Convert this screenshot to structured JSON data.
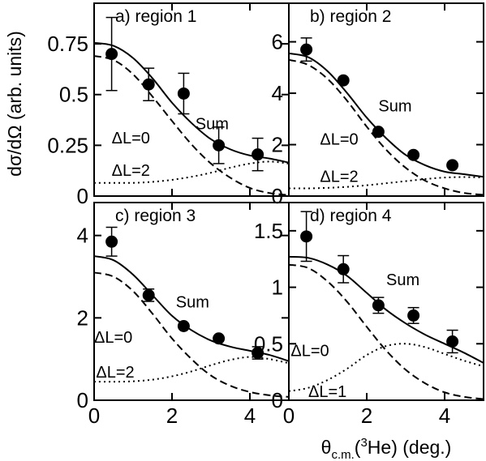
{
  "figure": {
    "ylabel": "dσ/dΩ (arb. units)",
    "xlabel_main": "θ",
    "xlabel_sub": "c.m.",
    "xlabel_paren": "(",
    "xlabel_sup": "3",
    "xlabel_rest": "He) (deg.)"
  },
  "chart_data": [
    {
      "type": "line",
      "title": "a) region 1",
      "xlim": [
        0,
        5
      ],
      "ylim": [
        0,
        0.95
      ],
      "yticks": [
        0,
        0.25,
        0.5,
        0.75
      ],
      "ytick_labels": [
        "0",
        "0.25",
        "0.5",
        "0.75"
      ],
      "xticks": [
        0,
        2,
        4
      ],
      "xtick_labels": [
        "",
        "",
        ""
      ],
      "points": {
        "x": [
          0.45,
          1.4,
          2.3,
          3.2,
          4.2
        ],
        "y": [
          0.7,
          0.55,
          0.505,
          0.25,
          0.205
        ],
        "yerr": [
          0.18,
          0.08,
          0.1,
          0.09,
          0.08
        ]
      },
      "series": [
        {
          "name": "Sum",
          "style": "solid",
          "x": [
            0,
            0.5,
            1.0,
            1.5,
            2.0,
            2.5,
            3.0,
            3.5,
            4.0,
            4.5,
            5.0
          ],
          "y": [
            0.755,
            0.74,
            0.68,
            0.58,
            0.46,
            0.36,
            0.28,
            0.23,
            0.2,
            0.185,
            0.165
          ]
        },
        {
          "name": "ΔL=0",
          "style": "dashed",
          "x": [
            0,
            0.5,
            1.0,
            1.5,
            2.0,
            2.5,
            3.0,
            3.5,
            4.0,
            4.5,
            5.0
          ],
          "y": [
            0.69,
            0.67,
            0.6,
            0.49,
            0.37,
            0.255,
            0.16,
            0.09,
            0.04,
            0.015,
            0.005
          ]
        },
        {
          "name": "ΔL=2",
          "style": "dotted",
          "x": [
            0,
            0.5,
            1.0,
            1.5,
            2.0,
            2.5,
            3.0,
            3.5,
            4.0,
            4.5,
            5.0
          ],
          "y": [
            0.065,
            0.065,
            0.065,
            0.07,
            0.08,
            0.095,
            0.115,
            0.14,
            0.16,
            0.17,
            0.16
          ]
        }
      ],
      "annotations": [
        {
          "text": "Sum",
          "x": 2.6,
          "y": 0.33
        },
        {
          "text": "ΔL=0",
          "x": 0.45,
          "y": 0.26
        },
        {
          "text": "ΔL=2",
          "x": 0.45,
          "y": 0.1
        }
      ]
    },
    {
      "type": "line",
      "title": "b) region 2",
      "xlim": [
        0,
        5
      ],
      "ylim": [
        0,
        7.5
      ],
      "yticks": [
        0,
        2,
        4,
        6
      ],
      "ytick_labels": [
        "0",
        "2",
        "4",
        "6"
      ],
      "xticks": [
        0,
        2,
        4
      ],
      "xtick_labels": [
        "",
        "",
        ""
      ],
      "points": {
        "x": [
          0.45,
          1.4,
          2.3,
          3.2,
          4.2
        ],
        "y": [
          5.7,
          4.5,
          2.5,
          1.6,
          1.2
        ],
        "yerr": [
          0.45,
          0.0,
          0.0,
          0.0,
          0.0
        ]
      },
      "series": [
        {
          "name": "Sum",
          "style": "solid",
          "x": [
            0,
            0.5,
            1.0,
            1.5,
            2.0,
            2.5,
            3.0,
            3.5,
            4.0,
            4.5,
            5.0
          ],
          "y": [
            5.55,
            5.4,
            4.85,
            4.0,
            3.05,
            2.25,
            1.6,
            1.2,
            0.95,
            0.85,
            0.75
          ]
        },
        {
          "name": "ΔL=0",
          "style": "dashed",
          "x": [
            0,
            0.5,
            1.0,
            1.5,
            2.0,
            2.5,
            3.0,
            3.5,
            4.0,
            4.5,
            5.0
          ],
          "y": [
            5.3,
            5.1,
            4.55,
            3.7,
            2.7,
            1.8,
            1.1,
            0.6,
            0.3,
            0.12,
            0.05
          ]
        },
        {
          "name": "ΔL=2",
          "style": "dotted",
          "x": [
            0,
            0.5,
            1.0,
            1.5,
            2.0,
            2.5,
            3.0,
            3.5,
            4.0,
            4.5,
            5.0
          ],
          "y": [
            0.3,
            0.3,
            0.32,
            0.36,
            0.42,
            0.5,
            0.58,
            0.66,
            0.72,
            0.74,
            0.72
          ]
        }
      ],
      "annotations": [
        {
          "text": "Sum",
          "x": 2.3,
          "y": 3.3
        },
        {
          "text": "ΔL=0",
          "x": 0.8,
          "y": 2.0
        },
        {
          "text": "ΔL=2",
          "x": 0.8,
          "y": 0.55
        }
      ]
    },
    {
      "type": "line",
      "title": "c) region 3",
      "xlim": [
        0,
        5
      ],
      "ylim": [
        0,
        4.8
      ],
      "yticks": [
        0,
        2,
        4
      ],
      "ytick_labels": [
        "0",
        "2",
        "4"
      ],
      "xticks": [
        0,
        2,
        4
      ],
      "xtick_labels": [
        "0",
        "2",
        "4"
      ],
      "points": {
        "x": [
          0.45,
          1.4,
          2.3,
          3.2,
          4.2
        ],
        "y": [
          3.85,
          2.55,
          1.8,
          1.5,
          1.15
        ],
        "yerr": [
          0.35,
          0.15,
          0.0,
          0.0,
          0.15
        ]
      },
      "series": [
        {
          "name": "Sum",
          "style": "solid",
          "x": [
            0,
            0.5,
            1.0,
            1.5,
            2.0,
            2.5,
            3.0,
            3.5,
            4.0,
            4.5,
            5.0
          ],
          "y": [
            3.5,
            3.4,
            3.05,
            2.55,
            2.05,
            1.7,
            1.45,
            1.3,
            1.2,
            1.1,
            0.95
          ]
        },
        {
          "name": "ΔL=0",
          "style": "dashed",
          "x": [
            0,
            0.5,
            1.0,
            1.5,
            2.0,
            2.5,
            3.0,
            3.5,
            4.0,
            4.5,
            5.0
          ],
          "y": [
            3.1,
            3.0,
            2.65,
            2.1,
            1.5,
            1.0,
            0.6,
            0.35,
            0.2,
            0.12,
            0.08
          ]
        },
        {
          "name": "ΔL=2",
          "style": "dotted",
          "x": [
            0,
            0.5,
            1.0,
            1.5,
            2.0,
            2.5,
            3.0,
            3.5,
            4.0,
            4.5,
            5.0
          ],
          "y": [
            0.45,
            0.45,
            0.46,
            0.5,
            0.58,
            0.7,
            0.85,
            0.98,
            1.05,
            1.0,
            0.9
          ]
        }
      ],
      "annotations": [
        {
          "text": "Sum",
          "x": 2.1,
          "y": 2.25
        },
        {
          "text": "ΔL=0",
          "x": 0.0,
          "y": 1.4
        },
        {
          "text": "ΔL=2",
          "x": 0.05,
          "y": 0.55
        }
      ]
    },
    {
      "type": "line",
      "title": "d) region 4",
      "xlim": [
        0,
        5
      ],
      "ylim": [
        0,
        1.75
      ],
      "yticks": [
        0,
        0.5,
        1,
        1.5
      ],
      "ytick_labels": [
        "0",
        "0.5",
        "1",
        "1.5"
      ],
      "xticks": [
        0,
        2,
        4
      ],
      "xtick_labels": [
        "0",
        "2",
        "4"
      ],
      "points": {
        "x": [
          0.45,
          1.4,
          2.3,
          3.2,
          4.2
        ],
        "y": [
          1.45,
          1.16,
          0.84,
          0.75,
          0.52
        ],
        "yerr": [
          0.22,
          0.12,
          0.07,
          0.07,
          0.1
        ]
      },
      "series": [
        {
          "name": "Sum",
          "style": "solid",
          "x": [
            0,
            0.5,
            1.0,
            1.5,
            2.0,
            2.5,
            3.0,
            3.5,
            4.0,
            4.5,
            5.0
          ],
          "y": [
            1.27,
            1.26,
            1.2,
            1.1,
            0.95,
            0.8,
            0.68,
            0.58,
            0.5,
            0.42,
            0.33
          ]
        },
        {
          "name": "ΔL=0",
          "style": "dashed",
          "x": [
            0,
            0.5,
            1.0,
            1.5,
            2.0,
            2.5,
            3.0,
            3.5,
            4.0,
            4.5,
            5.0
          ],
          "y": [
            1.2,
            1.17,
            1.05,
            0.87,
            0.65,
            0.44,
            0.27,
            0.15,
            0.07,
            0.03,
            0.01
          ]
        },
        {
          "name": "ΔL=1",
          "style": "dotted",
          "x": [
            0,
            0.5,
            1.0,
            1.5,
            2.0,
            2.5,
            3.0,
            3.5,
            4.0,
            4.5,
            5.0
          ],
          "y": [
            0.08,
            0.11,
            0.18,
            0.28,
            0.4,
            0.48,
            0.5,
            0.47,
            0.41,
            0.35,
            0.3
          ]
        }
      ],
      "annotations": [
        {
          "text": "Sum",
          "x": 2.5,
          "y": 1.02
        },
        {
          "text": "ΔL=0",
          "x": 0.05,
          "y": 0.39
        },
        {
          "text": "ΔL=1",
          "x": 0.5,
          "y": 0.03
        }
      ]
    }
  ]
}
